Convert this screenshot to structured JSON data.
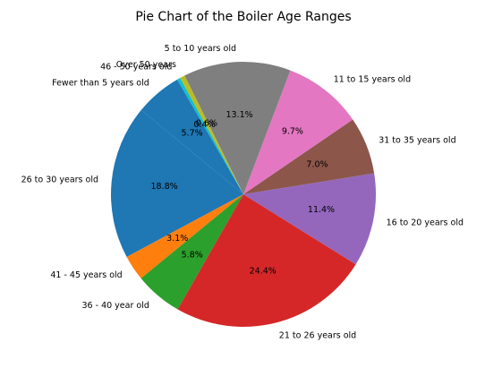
{
  "chart_data": {
    "type": "pie",
    "title": "Pie Chart of the Boiler Age Ranges",
    "start_angle_deg": 120,
    "direction": "counterclockwise",
    "slices": [
      {
        "label": "Fewer than 5 years old",
        "value": 5.7,
        "pct_label": "5.7%",
        "color": "#1f77b4"
      },
      {
        "label": "26 to 30 years old",
        "value": 18.8,
        "pct_label": "18.8%",
        "color": "#1f77b4"
      },
      {
        "label": "41 - 45 years old",
        "value": 3.1,
        "pct_label": "3.1%",
        "color": "#ff7f0e"
      },
      {
        "label": "36 - 40 year old",
        "value": 5.8,
        "pct_label": "5.8%",
        "color": "#2ca02c"
      },
      {
        "label": "21 to 26 years old",
        "value": 24.4,
        "pct_label": "24.4%",
        "color": "#d62728"
      },
      {
        "label": "16 to 20 years old",
        "value": 11.4,
        "pct_label": "11.4%",
        "color": "#9467bd"
      },
      {
        "label": "31 to 35 years old",
        "value": 7.0,
        "pct_label": "7.0%",
        "color": "#8c564b"
      },
      {
        "label": "11 to 15 years old",
        "value": 9.7,
        "pct_label": "9.7%",
        "color": "#e377c2"
      },
      {
        "label": "5 to 10 years old",
        "value": 13.1,
        "pct_label": "13.1%",
        "color": "#7f7f7f"
      },
      {
        "label": "Over 50 years",
        "value": 0.6,
        "pct_label": "0.6%",
        "color": "#bcbd22"
      },
      {
        "label": "46 - 50 years old",
        "value": 0.4,
        "pct_label": "0.4%",
        "color": "#17becf"
      }
    ]
  }
}
